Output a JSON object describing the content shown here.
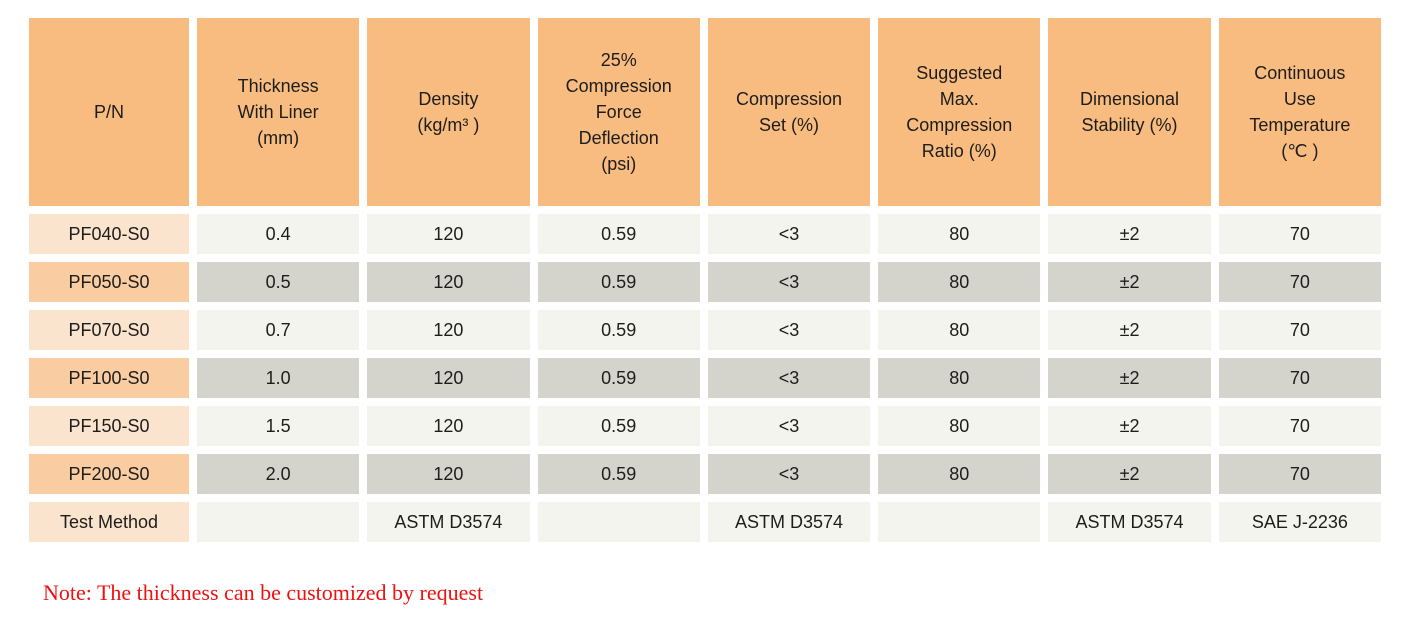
{
  "table": {
    "headers": [
      "P/N",
      "Thickness\nWith Liner\n(mm)",
      "Density\n(kg/m³ )",
      "25%\nCompression\nForce\nDeflection\n(psi)",
      "Compression\nSet (%)",
      "Suggested\nMax.\nCompression\nRatio (%)",
      "Dimensional\nStability (%)",
      "Continuous\nUse\nTemperature\n(℃ )"
    ],
    "rows": [
      {
        "pn": "PF040-S0",
        "values": [
          "0.4",
          "120",
          "0.59",
          "<3",
          "80",
          "±2",
          "70"
        ]
      },
      {
        "pn": "PF050-S0",
        "values": [
          "0.5",
          "120",
          "0.59",
          "<3",
          "80",
          "±2",
          "70"
        ]
      },
      {
        "pn": "PF070-S0",
        "values": [
          "0.7",
          "120",
          "0.59",
          "<3",
          "80",
          "±2",
          "70"
        ]
      },
      {
        "pn": "PF100-S0",
        "values": [
          "1.0",
          "120",
          "0.59",
          "<3",
          "80",
          "±2",
          "70"
        ]
      },
      {
        "pn": "PF150-S0",
        "values": [
          "1.5",
          "120",
          "0.59",
          "<3",
          "80",
          "±2",
          "70"
        ]
      },
      {
        "pn": "PF200-S0",
        "values": [
          "2.0",
          "120",
          "0.59",
          "<3",
          "80",
          "±2",
          "70"
        ]
      }
    ],
    "test_method": {
      "label": "Test Method",
      "values": [
        "",
        "ASTM D3574",
        "",
        "ASTM D3574",
        "",
        "ASTM D3574",
        "SAE J-2236"
      ]
    }
  },
  "note": "Note: The thickness can be customized by request",
  "colors": {
    "header_bg": "#F8BC80",
    "pn_light": "#FBE4CD",
    "pn_dark": "#F9CDA1",
    "cell_light": "#F4F4EF",
    "cell_dark": "#D4D4CC",
    "note_red": "#EE1111",
    "text": "#1D1D1B"
  }
}
